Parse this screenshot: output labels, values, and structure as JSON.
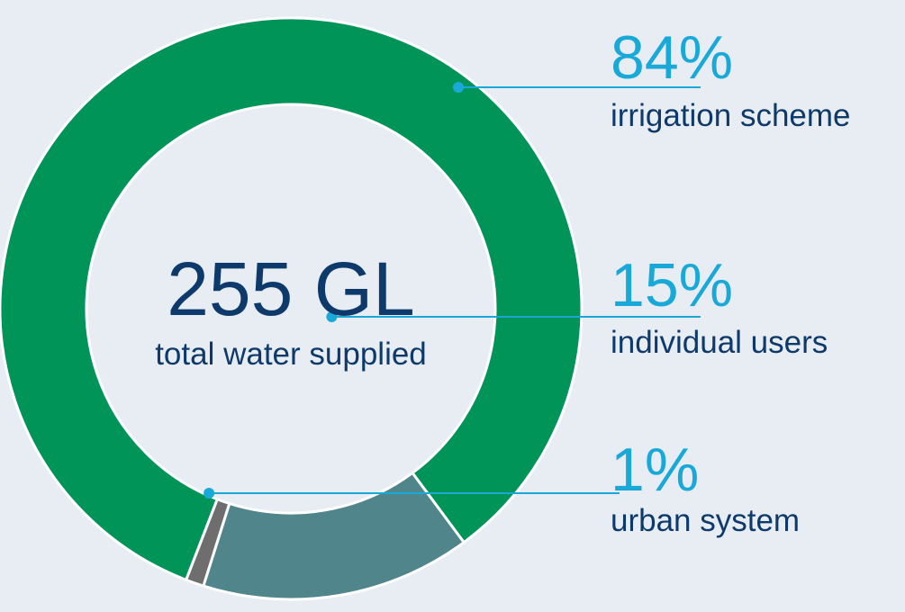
{
  "chart_data": {
    "type": "pie",
    "variant": "donut",
    "center_value": "255 GL",
    "center_label": "total water supplied",
    "slices": [
      {
        "category": "irrigation scheme",
        "value": 84,
        "label": "84%",
        "color": "#009459"
      },
      {
        "category": "individual users",
        "value": 15,
        "label": "15%",
        "color": "#4f858b"
      },
      {
        "category": "urban system",
        "value": 1,
        "label": "1%",
        "color": "#6e6e6e"
      }
    ],
    "leader_color": "#19a9d9",
    "legend": "right"
  }
}
